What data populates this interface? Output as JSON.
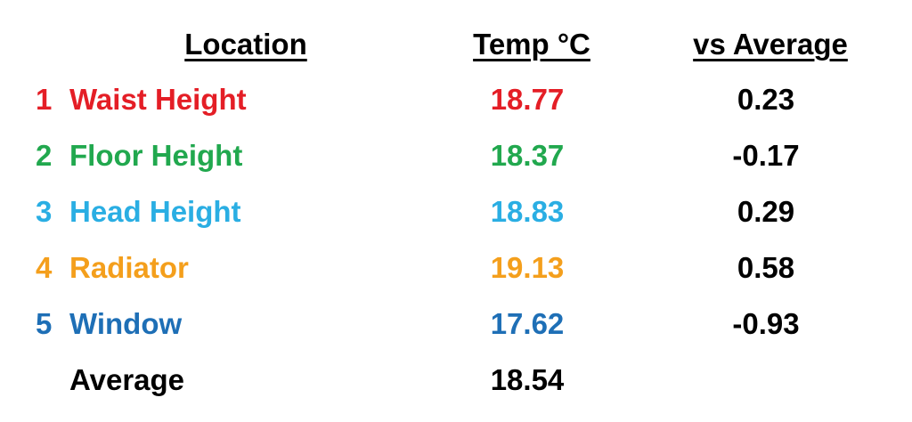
{
  "table": {
    "header": [
      "Location",
      "Temp °C",
      "vs Average"
    ],
    "rows": [
      {
        "number": 1,
        "location": "Waist Height",
        "temp": 18.77,
        "vs_average": 0.23,
        "color": "#e41e26"
      },
      {
        "number": 2,
        "location": "Floor Height",
        "temp": 18.37,
        "vs_average": -0.17,
        "color": "#21a84e"
      },
      {
        "number": 3,
        "location": "Head Height",
        "temp": 18.83,
        "vs_average": 0.29,
        "color": "#2aaee3"
      },
      {
        "number": 4,
        "location": "Radiator",
        "temp": 19.13,
        "vs_average": 0.58,
        "color": "#f49f1c"
      },
      {
        "number": 5,
        "location": "Window",
        "temp": 17.62,
        "vs_average": -0.93,
        "color": "#1e6fb6"
      }
    ],
    "average": {
      "label": "Average",
      "temp": 18.54
    }
  }
}
